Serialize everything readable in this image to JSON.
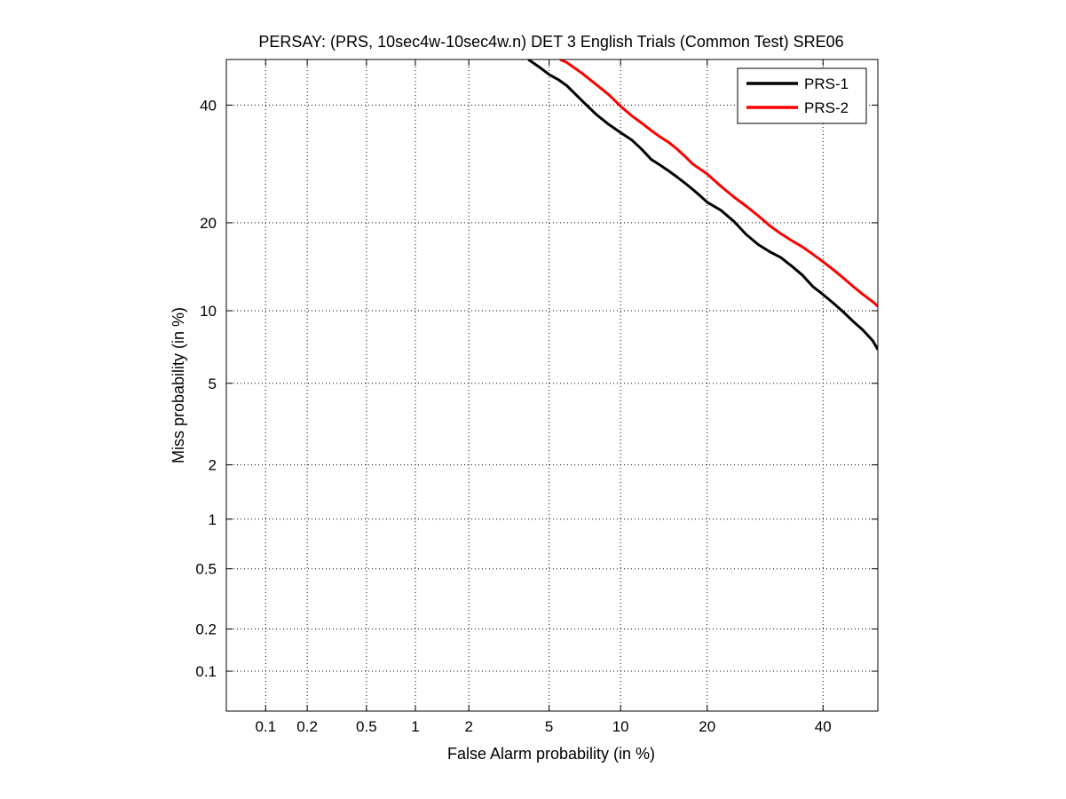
{
  "chart_data": {
    "type": "line",
    "title": "PERSAY: (PRS, 10sec4w-10sec4w.n) DET 3 English Trials (Common Test) SRE06",
    "xlabel": "False Alarm probability (in %)",
    "ylabel": "Miss probability (in %)",
    "scale": "normal-deviate (probit)",
    "xlim": [
      0.05,
      51
    ],
    "ylim": [
      0.05,
      49
    ],
    "xticks": [
      0.1,
      0.2,
      0.5,
      1,
      2,
      5,
      10,
      20,
      40
    ],
    "xtick_labels": [
      "0.1",
      "0.2",
      "0.5",
      "1",
      "2",
      "5",
      "10",
      "20",
      "40"
    ],
    "yticks": [
      0.1,
      0.2,
      0.5,
      1,
      2,
      5,
      10,
      20,
      40
    ],
    "ytick_labels": [
      "0.1",
      "0.2",
      "0.5",
      "1",
      "2",
      "5",
      "10",
      "20",
      "40"
    ],
    "grid": true,
    "legend_position": "top-right",
    "series": [
      {
        "name": "PRS-1",
        "color": "#000000",
        "x": [
          4.0,
          4.5,
          5.0,
          5.5,
          6.0,
          7.0,
          8.0,
          9.0,
          10.0,
          11.0,
          12.0,
          13.0,
          14.0,
          15.0,
          16.0,
          17.0,
          18.0,
          19.0,
          20.0,
          22.0,
          24.0,
          26.0,
          28.0,
          30.0,
          32.0,
          34.0,
          36.0,
          38.0,
          40.0,
          42.0,
          44.0,
          46.0,
          48.0,
          50.0,
          51.0
        ],
        "y": [
          49.0,
          47.5,
          46.0,
          45.0,
          43.8,
          40.8,
          38.2,
          36.3,
          34.8,
          33.5,
          31.8,
          30.0,
          29.0,
          28.0,
          27.0,
          26.0,
          25.0,
          24.0,
          23.0,
          21.8,
          20.2,
          18.4,
          17.1,
          16.2,
          15.5,
          14.5,
          13.5,
          12.3,
          11.5,
          10.7,
          9.9,
          9.1,
          8.4,
          7.6,
          7.0
        ]
      },
      {
        "name": "PRS-2",
        "color": "#ff0000",
        "x": [
          5.6,
          6.0,
          7.0,
          8.0,
          9.0,
          10.0,
          11.0,
          12.0,
          13.0,
          14.0,
          15.0,
          16.0,
          17.0,
          18.0,
          20.0,
          22.0,
          24.0,
          26.0,
          28.0,
          30.0,
          32.0,
          34.0,
          36.0,
          38.0,
          40.0,
          42.0,
          44.0,
          46.0,
          48.0,
          50.0,
          51.0
        ],
        "y": [
          49.0,
          48.4,
          46.2,
          44.0,
          42.0,
          39.8,
          38.0,
          36.6,
          35.2,
          34.0,
          33.0,
          31.8,
          30.5,
          29.2,
          27.5,
          25.5,
          23.8,
          22.4,
          21.0,
          19.6,
          18.5,
          17.6,
          16.8,
          15.9,
          15.0,
          14.1,
          13.2,
          12.3,
          11.5,
          10.8,
          10.4
        ]
      }
    ]
  }
}
